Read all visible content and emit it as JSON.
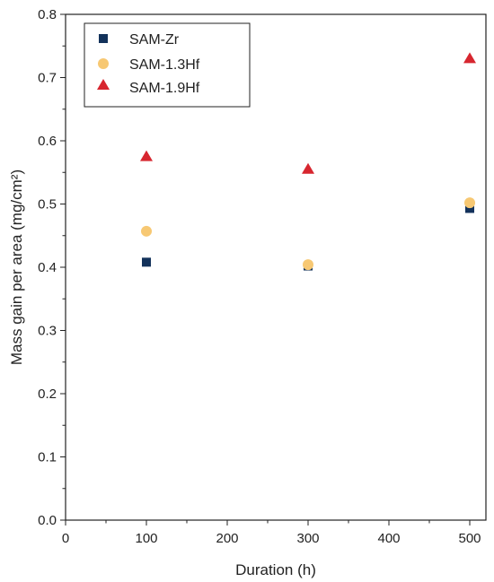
{
  "chart_data": {
    "type": "scatter",
    "title": "",
    "xlabel": "Duration (h)",
    "ylabel": "Mass gain per area (mg/cm²)",
    "xlim": [
      0,
      520
    ],
    "ylim": [
      0,
      0.8
    ],
    "xticks": [
      0,
      100,
      200,
      300,
      400,
      500
    ],
    "xtick_labels": [
      "0",
      "100",
      "200",
      "300",
      "400",
      "500"
    ],
    "yticks": [
      0.0,
      0.1,
      0.2,
      0.3,
      0.4,
      0.5,
      0.6,
      0.7,
      0.8
    ],
    "ytick_labels": [
      "0.0",
      "0.1",
      "0.2",
      "0.3",
      "0.4",
      "0.5",
      "0.6",
      "0.7",
      "0.8"
    ],
    "grid": false,
    "legend_position": "top-left",
    "series": [
      {
        "name": "SAM-Zr",
        "marker": "square",
        "color": "#13325b",
        "points": [
          {
            "x": 100,
            "y": 0.408
          },
          {
            "x": 300,
            "y": 0.402
          },
          {
            "x": 500,
            "y": 0.493
          }
        ]
      },
      {
        "name": "SAM-1.3Hf",
        "marker": "circle",
        "color": "#f7c873",
        "points": [
          {
            "x": 100,
            "y": 0.457
          },
          {
            "x": 300,
            "y": 0.404
          },
          {
            "x": 500,
            "y": 0.502
          }
        ]
      },
      {
        "name": "SAM-1.9Hf",
        "marker": "triangle",
        "color": "#d7262f",
        "points": [
          {
            "x": 100,
            "y": 0.575
          },
          {
            "x": 300,
            "y": 0.555
          },
          {
            "x": 500,
            "y": 0.73
          }
        ]
      }
    ]
  }
}
